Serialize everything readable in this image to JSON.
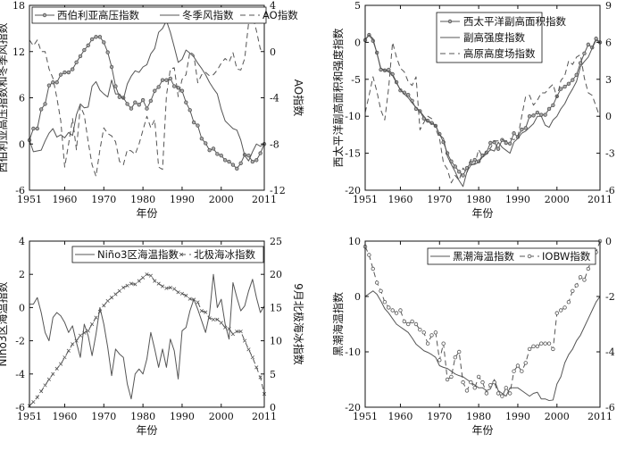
{
  "chart_data": [
    {
      "type": "line",
      "x": [
        1951,
        1952,
        1953,
        1954,
        1955,
        1956,
        1957,
        1958,
        1959,
        1960,
        1961,
        1962,
        1963,
        1964,
        1965,
        1966,
        1967,
        1968,
        1969,
        1970,
        1971,
        1972,
        1973,
        1974,
        1975,
        1976,
        1977,
        1978,
        1979,
        1980,
        1981,
        1982,
        1983,
        1984,
        1985,
        1986,
        1987,
        1988,
        1989,
        1990,
        1991,
        1992,
        1993,
        1994,
        1995,
        1996,
        1997,
        1998,
        1999,
        2000,
        2001,
        2002,
        2003,
        2004,
        2005,
        2006,
        2007,
        2008,
        2009,
        2010,
        2011
      ],
      "xlabel": "年份",
      "xticks": [
        1951,
        1960,
        1970,
        1980,
        1990,
        2000,
        2011
      ],
      "ylabel_left": "西伯利亚高压指数和冬季风指数",
      "ylim_left": [
        -6,
        18
      ],
      "yticks_left": [
        -6,
        0,
        6,
        12,
        18
      ],
      "ylabel_right": "AO指数",
      "ylim_right": [
        -12,
        4
      ],
      "yticks_right": [
        -12,
        -8,
        -4,
        0,
        4
      ],
      "series": [
        {
          "name": "西伯利亚高压指数",
          "axis": "left",
          "style": "solid-circle",
          "values": [
            0.5,
            2,
            2,
            4.5,
            5.2,
            7.6,
            8,
            8,
            9,
            9.3,
            9.3,
            9.7,
            10.6,
            11.4,
            12.2,
            12.8,
            13.6,
            13.9,
            13.9,
            13.2,
            11.9,
            10,
            7.5,
            6.1,
            6,
            5.2,
            4.6,
            5.4,
            5.1,
            5.7,
            4.6,
            5.6,
            6.9,
            7.4,
            8.3,
            8.3,
            8.5,
            7.5,
            7.3,
            6.9,
            5.4,
            4.4,
            2.8,
            2.4,
            0.7,
            0.1,
            -0.8,
            -0.6,
            -1.3,
            -1.5,
            -2.1,
            -2.3,
            -2.7,
            -3.2,
            -2.5,
            -1.4,
            -1.5,
            -2.3,
            -2.1,
            -1.2,
            0
          ]
        },
        {
          "name": "冬季风指数",
          "axis": "left",
          "style": "solid",
          "values": [
            0.5,
            -1,
            -0.9,
            -0.8,
            0.4,
            1.4,
            2,
            0.9,
            1.2,
            0.8,
            1.5,
            1.1,
            3.8,
            5.2,
            4.7,
            4.8,
            7.5,
            8.1,
            7,
            6.5,
            6.1,
            8.3,
            6.5,
            6.5,
            5.8,
            7.8,
            8.8,
            9.5,
            9.3,
            10,
            10.3,
            11.7,
            12.4,
            14.5,
            15,
            16,
            14.5,
            12.6,
            10.6,
            11,
            12.2,
            11.8,
            11.3,
            10.5,
            9.8,
            9,
            8,
            7.2,
            6.5,
            4.5,
            3,
            2.5,
            2,
            1.8,
            0.5,
            -1.5,
            -2.2,
            -1,
            0,
            -0.3,
            0
          ]
        },
        {
          "name": "AO指数",
          "axis": "right",
          "style": "dashed",
          "values": [
            1,
            0.5,
            1,
            0,
            0,
            -1.5,
            -2.3,
            -4,
            -6,
            -10,
            -8,
            -5.8,
            -8.5,
            -4.7,
            -5.5,
            -7.8,
            -9.8,
            -10.8,
            -8.5,
            -6.6,
            -7.1,
            -7.3,
            -7.8,
            -9.5,
            -9.8,
            -8.5,
            -8.6,
            -8.9,
            -8,
            -6.8,
            -5.6,
            -6.6,
            -5.9,
            -10,
            -10.2,
            -3.8,
            -1.5,
            -1.4,
            -3.9,
            -2.4,
            -2,
            0,
            -0.3,
            -2.7,
            -2,
            -1.8,
            -2.1,
            -2,
            -1.6,
            -1,
            -0.6,
            -0.9,
            -0.1,
            -1.5,
            -1.6,
            -0.6,
            2.5,
            3.1,
            1.8,
            0.2,
            0.2
          ]
        }
      ]
    },
    {
      "type": "line",
      "x": [
        1951,
        1952,
        1953,
        1954,
        1955,
        1956,
        1957,
        1958,
        1959,
        1960,
        1961,
        1962,
        1963,
        1964,
        1965,
        1966,
        1967,
        1968,
        1969,
        1970,
        1971,
        1972,
        1973,
        1974,
        1975,
        1976,
        1977,
        1978,
        1979,
        1980,
        1981,
        1982,
        1983,
        1984,
        1985,
        1986,
        1987,
        1988,
        1989,
        1990,
        1991,
        1992,
        1993,
        1994,
        1995,
        1996,
        1997,
        1998,
        1999,
        2000,
        2001,
        2002,
        2003,
        2004,
        2005,
        2006,
        2007,
        2008,
        2009,
        2010,
        2011
      ],
      "xlabel": "年份",
      "xticks": [
        1951,
        1960,
        1970,
        1980,
        1990,
        2000,
        2011
      ],
      "ylabel_left": "西太平洋副高面积和强度指数",
      "ylim_left": [
        -20,
        5
      ],
      "yticks_left": [
        -20,
        -15,
        -10,
        -5,
        0,
        5
      ],
      "ylabel_right": "高原高度场指数",
      "ylim_right": [
        -6,
        9
      ],
      "yticks_right": [
        -6,
        -3,
        0,
        3,
        6,
        9
      ],
      "series": [
        {
          "name": "西太平洋副高面积指数",
          "axis": "left",
          "style": "solid-circle",
          "values": [
            0.3,
            1,
            0.2,
            -1.4,
            -3.7,
            -3.8,
            -3.7,
            -4.3,
            -5.4,
            -6.5,
            -6.8,
            -7.1,
            -7.9,
            -9,
            -9.3,
            -10.3,
            -10.6,
            -10.9,
            -11.3,
            -12.4,
            -13.5,
            -15,
            -16.1,
            -16.8,
            -17.5,
            -18,
            -17,
            -16.3,
            -15.9,
            -16.1,
            -15.3,
            -14.9,
            -13.6,
            -13.5,
            -14.4,
            -13.2,
            -13.6,
            -13.7,
            -12.3,
            -12.8,
            -11.8,
            -11.6,
            -10,
            -9.9,
            -9.5,
            -9.8,
            -9.8,
            -9,
            -8.5,
            -7.3,
            -6.3,
            -6,
            -5.6,
            -5.1,
            -4.4,
            -2.8,
            -1.5,
            -0.3,
            -0.7,
            0.5,
            0
          ]
        },
        {
          "name": "副高强度指数",
          "axis": "left",
          "style": "solid",
          "values": [
            0.4,
            1,
            0.5,
            -1.5,
            -3.5,
            -3.8,
            -4,
            -4.5,
            -5.5,
            -6.4,
            -7,
            -7.5,
            -8.2,
            -8.8,
            -9.3,
            -10,
            -10.7,
            -11,
            -11.2,
            -12.5,
            -13,
            -15.4,
            -16.5,
            -17.5,
            -18.7,
            -19.5,
            -17.5,
            -16.6,
            -16.5,
            -16.2,
            -15.5,
            -15.1,
            -14.5,
            -14.7,
            -13.5,
            -14.2,
            -14.6,
            -15,
            -13.5,
            -13,
            -12.3,
            -12,
            -11.5,
            -11,
            -10,
            -10,
            -11.2,
            -11.5,
            -10.5,
            -10,
            -9,
            -8.3,
            -7.2,
            -6.3,
            -5.3,
            -3.3,
            -2.6,
            -2,
            -0.8,
            0.3,
            0
          ]
        },
        {
          "name": "高原高度场指数",
          "axis": "right",
          "style": "dashed",
          "values": [
            0.3,
            1.7,
            3.2,
            2,
            0.5,
            -0.3,
            2.3,
            6,
            4.8,
            3.9,
            3.6,
            2.8,
            2.5,
            3.2,
            -1.1,
            -0.5,
            0,
            -0.2,
            -1,
            -1.8,
            -3.8,
            -4.3,
            -5.4,
            -4.8,
            -5.2,
            -4.2,
            -4.6,
            -3.5,
            -3.9,
            -2.7,
            -3.3,
            -2.8,
            -2.6,
            -2,
            -2,
            -1.9,
            -2,
            -1.8,
            -1.9,
            -1.7,
            0,
            1.6,
            1.7,
            0.9,
            1.3,
            1.9,
            1.9,
            2.3,
            2.6,
            1.5,
            2.9,
            3.3,
            4.5,
            4.2,
            4.8,
            5,
            3.1,
            1.9,
            1.7,
            0.8,
            -0.1
          ]
        }
      ]
    },
    {
      "type": "line",
      "x": [
        1951,
        1952,
        1953,
        1954,
        1955,
        1956,
        1957,
        1958,
        1959,
        1960,
        1961,
        1962,
        1963,
        1964,
        1965,
        1966,
        1967,
        1968,
        1969,
        1970,
        1971,
        1972,
        1973,
        1974,
        1975,
        1976,
        1977,
        1978,
        1979,
        1980,
        1981,
        1982,
        1983,
        1984,
        1985,
        1986,
        1987,
        1988,
        1989,
        1990,
        1991,
        1992,
        1993,
        1994,
        1995,
        1996,
        1997,
        1998,
        1999,
        2000,
        2001,
        2002,
        2003,
        2004,
        2005,
        2006,
        2007,
        2008,
        2009,
        2010,
        2011
      ],
      "xlabel": "年份",
      "xticks": [
        1951,
        1960,
        1970,
        1980,
        1990,
        2000,
        2011
      ],
      "ylabel_left": "Niño3区海温指数",
      "ylim_left": [
        -6,
        4
      ],
      "yticks_left": [
        -6,
        -4,
        -2,
        0,
        2,
        4
      ],
      "ylabel_right": "9月北极海冰指数",
      "ylim_right": [
        0,
        25
      ],
      "yticks_right": [
        0,
        5,
        10,
        15,
        20,
        25
      ],
      "series": [
        {
          "name": "Niño3区海温指数",
          "axis": "left",
          "style": "solid",
          "values": [
            0.2,
            0.2,
            0.6,
            -0.3,
            -1.5,
            -2,
            -0.6,
            -0.3,
            -0.5,
            -0.9,
            -1.5,
            -1.1,
            -2.1,
            -3,
            -1,
            -1.7,
            -2.9,
            -1.6,
            0,
            -1,
            -2.4,
            -4.1,
            -2.5,
            -2.8,
            -3,
            -4.6,
            -5.5,
            -4,
            -3.7,
            -4,
            -3.1,
            -1.5,
            -2.5,
            -3.6,
            -2.5,
            -3.6,
            -1.9,
            -2.6,
            -4.3,
            -1.4,
            -1.2,
            -0.2,
            0.5,
            -0.1,
            -0.8,
            -1.5,
            -0.4,
            2,
            0,
            0.5,
            -1,
            -1.9,
            1.5,
            0.6,
            -0.2,
            0.1,
            1,
            1.7,
            0.6,
            -0.3,
            0.1
          ]
        },
        {
          "name": "北极海冰指数",
          "axis": "right",
          "style": "dashed-x",
          "values": [
            0.2,
            0.8,
            1.5,
            2.4,
            3.3,
            4.2,
            5,
            5.8,
            6.5,
            7.5,
            8.5,
            9.5,
            10,
            10.8,
            11.2,
            11.5,
            12.5,
            13.5,
            14.4,
            15.3,
            16,
            16.5,
            17,
            17.5,
            18,
            18.3,
            18.6,
            18.5,
            19,
            19.5,
            20,
            19.8,
            19,
            18.6,
            18.2,
            17.9,
            18,
            17.8,
            17.3,
            17.1,
            16.8,
            16.3,
            16.2,
            15.8,
            14.5,
            14.3,
            13.4,
            13.2,
            13.2,
            12.7,
            12,
            11.8,
            11,
            11.4,
            11.4,
            10,
            8.7,
            7.5,
            6,
            4.5,
            2
          ]
        }
      ]
    },
    {
      "type": "line",
      "x": [
        1951,
        1952,
        1953,
        1954,
        1955,
        1956,
        1957,
        1958,
        1959,
        1960,
        1961,
        1962,
        1963,
        1964,
        1965,
        1966,
        1967,
        1968,
        1969,
        1970,
        1971,
        1972,
        1973,
        1974,
        1975,
        1976,
        1977,
        1978,
        1979,
        1980,
        1981,
        1982,
        1983,
        1984,
        1985,
        1986,
        1987,
        1988,
        1989,
        1990,
        1991,
        1992,
        1993,
        1994,
        1995,
        1996,
        1997,
        1998,
        1999,
        2000,
        2001,
        2002,
        2003,
        2004,
        2005,
        2006,
        2007,
        2008,
        2009,
        2010,
        2011
      ],
      "xlabel": "年份",
      "xticks": [
        1951,
        1960,
        1970,
        1980,
        1990,
        2000,
        2011
      ],
      "ylabel_left": "黑潮海温指数",
      "ylim_left": [
        -20,
        10
      ],
      "yticks_left": [
        -20,
        -10,
        0,
        10
      ],
      "ylabel_right": "IOBW指数",
      "ylim_right": [
        -6,
        0
      ],
      "yticks_right": [
        -6,
        -4,
        -2,
        0
      ],
      "series": [
        {
          "name": "黑潮海温指数",
          "axis": "left",
          "style": "solid",
          "values": [
            0,
            0.5,
            1,
            0.4,
            -0.8,
            -2.2,
            -3,
            -4,
            -5,
            -5.5,
            -6,
            -6.5,
            -7.5,
            -8.6,
            -9.2,
            -9.8,
            -10.1,
            -10.5,
            -11,
            -12.5,
            -12.8,
            -13,
            -13.5,
            -14,
            -14.3,
            -14.5,
            -15,
            -15.5,
            -16,
            -16.5,
            -16.5,
            -17,
            -16.7,
            -15,
            -17,
            -17.5,
            -18,
            -16.5,
            -16.5,
            -16.5,
            -17,
            -17.5,
            -18,
            -17.5,
            -17.3,
            -18.5,
            -18.5,
            -18.8,
            -18.7,
            -15.8,
            -14.5,
            -12,
            -10.5,
            -9.5,
            -8,
            -7,
            -5.5,
            -4,
            -2.5,
            -1,
            0
          ]
        },
        {
          "name": "IOBW指数",
          "axis": "right",
          "style": "dashed-circle",
          "values": [
            -0.2,
            -0.5,
            -1,
            -1.5,
            -1.8,
            -2.2,
            -2.4,
            -2.5,
            -2.6,
            -2.5,
            -2.9,
            -3,
            -2.9,
            -3,
            -3.2,
            -3.3,
            -3.7,
            -3.4,
            -3.3,
            -4.3,
            -3.7,
            -5,
            -4.9,
            -4.2,
            -4,
            -5.1,
            -5.4,
            -5.1,
            -5.3,
            -4.9,
            -5.1,
            -5.5,
            -5.2,
            -5.1,
            -5.5,
            -5.6,
            -5.3,
            -5.5,
            -4.7,
            -4.5,
            -4.7,
            -4.4,
            -3.9,
            -3.8,
            -3.8,
            -3.7,
            -3.7,
            -3.7,
            -3.9,
            -2.6,
            -2.5,
            -2.4,
            -2.2,
            -1.8,
            -1.6,
            -1.3,
            -1.4,
            -1.0,
            -0.6,
            -0.4,
            0
          ]
        }
      ]
    }
  ],
  "colors": {
    "line": "#555555",
    "axis": "#111111",
    "marker_fill": "#aaaaaa"
  }
}
